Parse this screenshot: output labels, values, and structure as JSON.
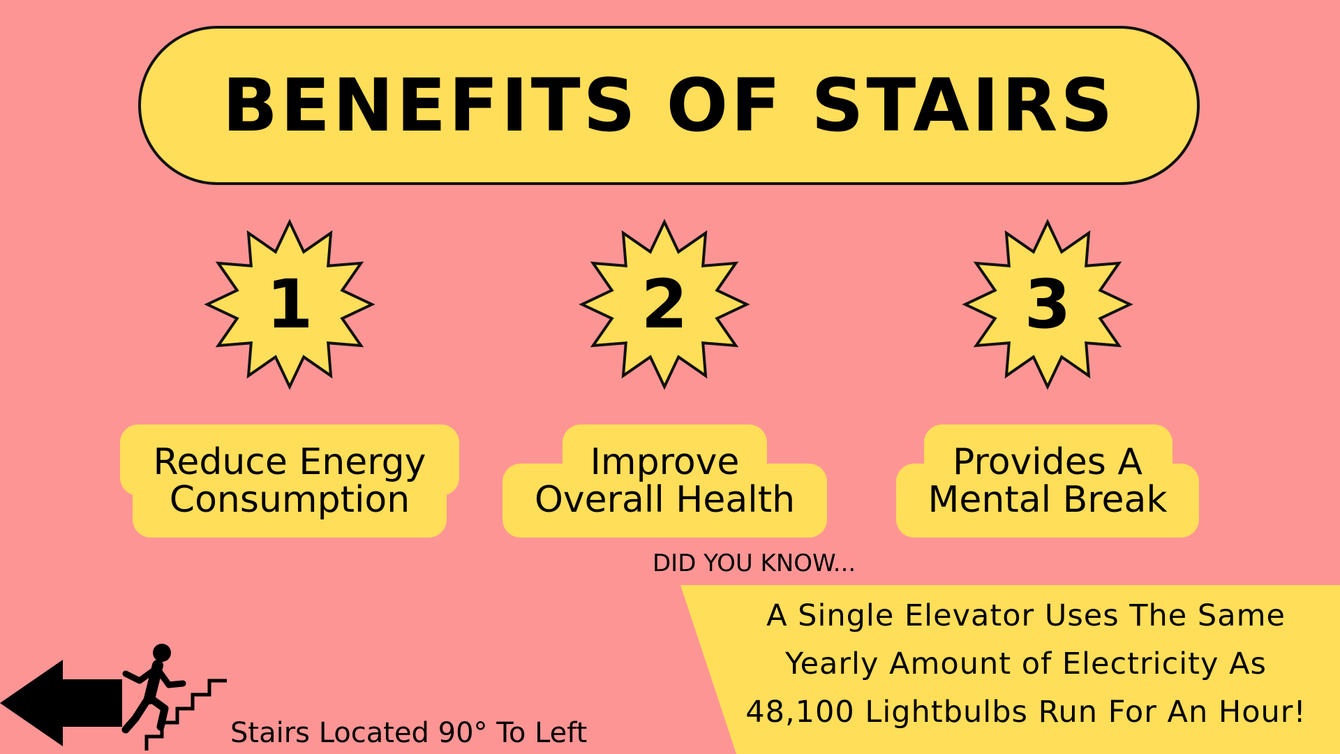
{
  "title": "BENEFITS OF STAIRS",
  "colors": {
    "background": "#fd9595",
    "accent_yellow": "#ffde59",
    "outline": "#111111",
    "text": "#000000"
  },
  "benefits": [
    {
      "number": "1",
      "line1": "Reduce Energy",
      "line2": "Consumption"
    },
    {
      "number": "2",
      "line1": "Improve",
      "line2": "Overall Health"
    },
    {
      "number": "3",
      "line1": "Provides A",
      "line2": "Mental Break"
    }
  ],
  "did_you_know": "DID YOU KNOW...",
  "fact": {
    "lines": [
      "A Single Elevator Uses The Same",
      "Yearly Amount of Electricity As",
      "48,100 Lightbulbs Run For An Hour!"
    ]
  },
  "stairs_location": "Stairs Located 90° To Left",
  "icons": {
    "arrow": "left-arrow-icon",
    "stairs": "person-climbing-stairs-icon",
    "starburst": "starburst-icon"
  }
}
